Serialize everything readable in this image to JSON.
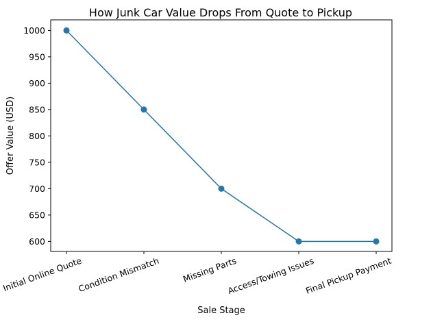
{
  "chart_data": {
    "type": "line",
    "title": "How Junk Car Value Drops From Quote to Pickup",
    "xlabel": "Sale Stage",
    "ylabel": "Offer Value (USD)",
    "categories": [
      "Initial Online Quote",
      "Condition Mismatch",
      "Missing Parts",
      "Access/Towing Issues",
      "Final Pickup Payment"
    ],
    "values": [
      1000,
      850,
      700,
      600,
      600
    ],
    "ylim": [
      581,
      1020
    ],
    "yticks": [
      600,
      650,
      700,
      750,
      800,
      850,
      900,
      950,
      1000
    ],
    "grid": false,
    "legend": "none",
    "line_color": "#1f77b4"
  }
}
